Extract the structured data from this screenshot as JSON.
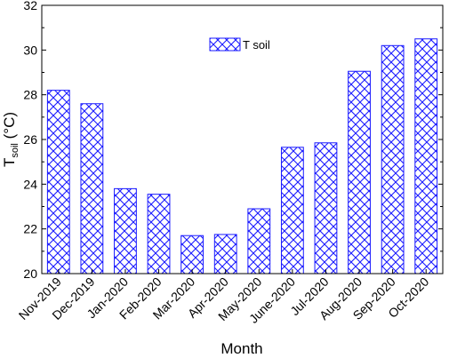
{
  "chart_data": {
    "type": "bar",
    "categories": [
      "Nov-2019",
      "Dec-2019",
      "Jan-2020",
      "Feb-2020",
      "Mar-2020",
      "Apr-2020",
      "May-2020",
      "June-2020",
      "Jul-2020",
      "Aug-2020",
      "Sep-2020",
      "Oct-2020"
    ],
    "series": [
      {
        "name": "T soil",
        "values": [
          28.2,
          27.6,
          23.8,
          23.55,
          21.7,
          21.75,
          22.9,
          25.65,
          25.85,
          29.05,
          30.2,
          30.5
        ]
      }
    ],
    "xlabel": "Month",
    "ylabel_main": "T",
    "ylabel_sub": "soil",
    "ylabel_unit": " (°C)",
    "ylim": [
      20,
      32
    ],
    "yticks": [
      20,
      22,
      24,
      26,
      28,
      30,
      32
    ],
    "legend_position": "top-center",
    "grid": false,
    "bar_color": "#1a1aff",
    "bar_pattern": "crosshatch"
  }
}
